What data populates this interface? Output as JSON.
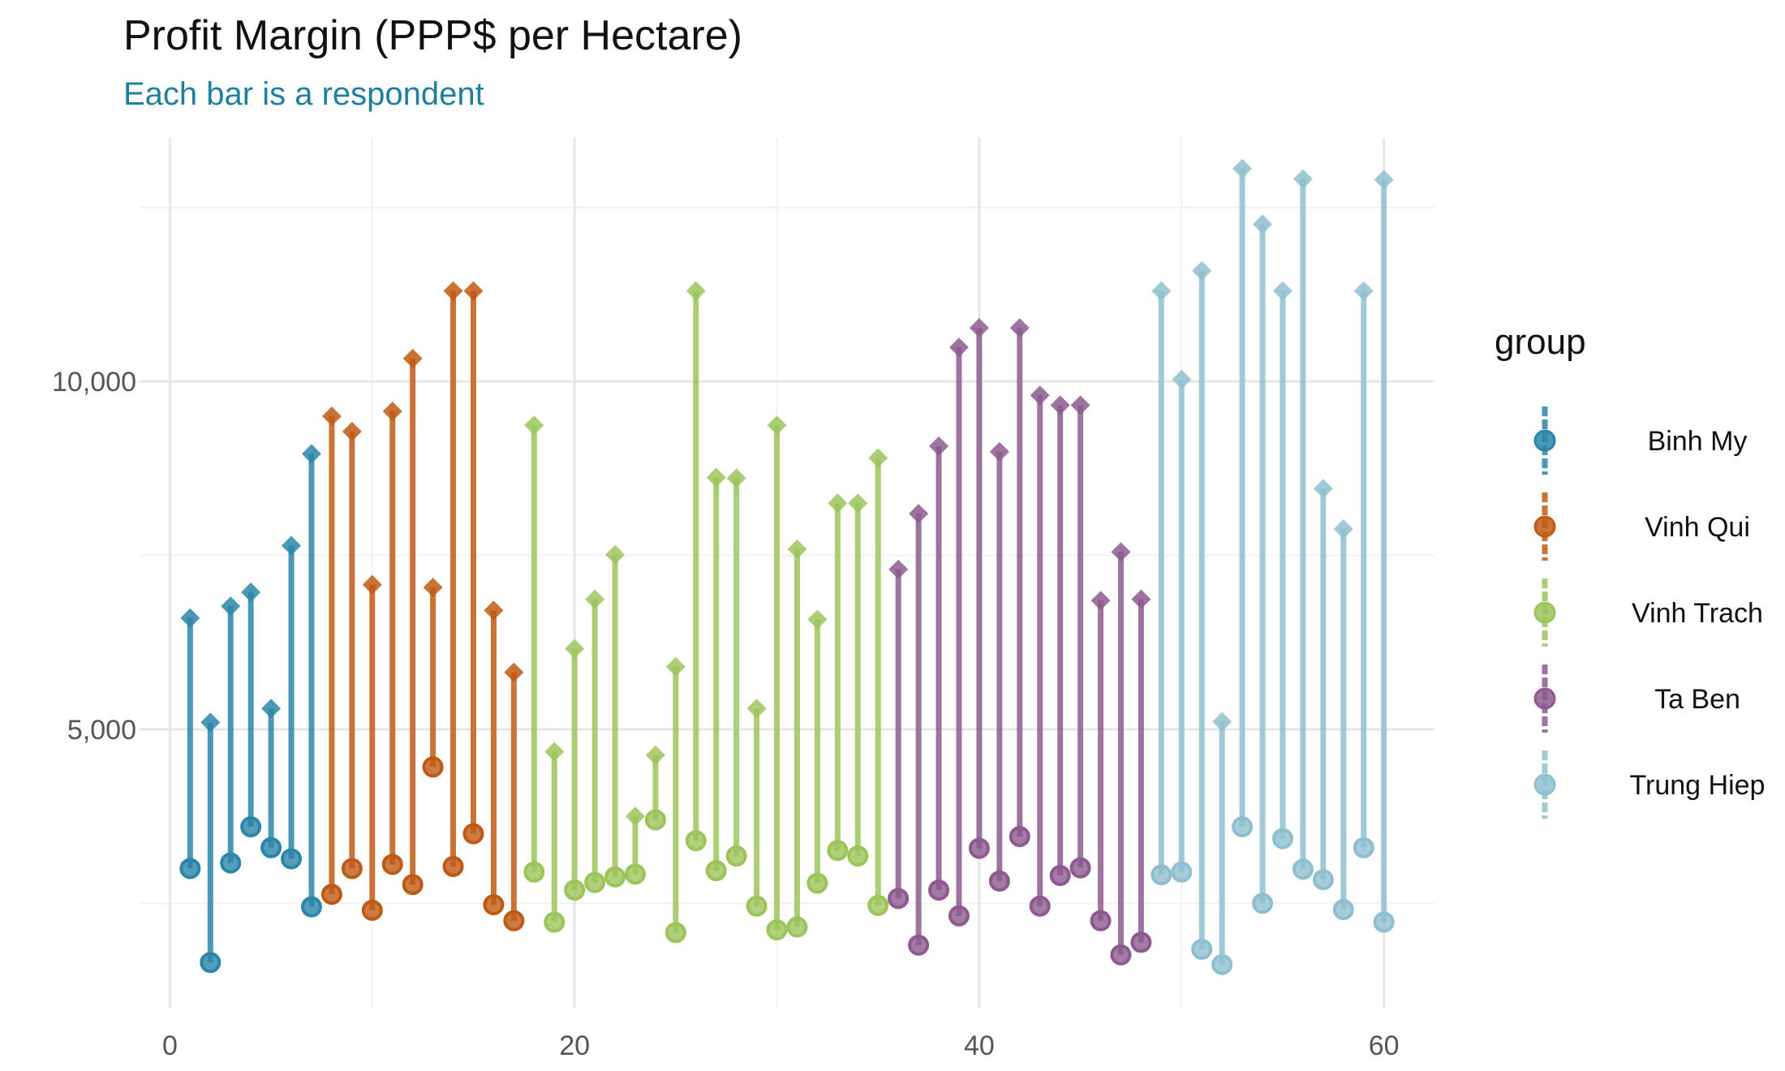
{
  "chart_data": {
    "type": "dumbbell",
    "title": "Profit Margin (PPP$ per Hectare)",
    "subtitle": "Each bar is a respondent",
    "xlabel": "",
    "ylabel": "",
    "xlim": [
      -1.5,
      62.5
    ],
    "ylim": [
      1000,
      13500
    ],
    "x_ticks": [
      0,
      20,
      40,
      60
    ],
    "y_ticks": [
      5000,
      10000
    ],
    "grid": true,
    "legend_title": "group",
    "legend_position": "right",
    "series": [
      {
        "name": "Binh My",
        "color": "#2a86a8",
        "x": [
          1,
          2,
          3,
          4,
          5,
          6,
          7
        ],
        "start": [
          3000,
          1650,
          3080,
          3600,
          3300,
          3140,
          2450
        ],
        "end": [
          6600,
          5100,
          6770,
          6970,
          5300,
          7640,
          8960
        ]
      },
      {
        "name": "Vinh Qui",
        "color": "#bf5a14",
        "x": [
          8,
          9,
          10,
          11,
          12,
          13,
          14,
          15,
          16,
          17
        ],
        "start": [
          2630,
          3000,
          2400,
          3060,
          2770,
          4460,
          3030,
          3500,
          2480,
          2250
        ],
        "end": [
          9500,
          9280,
          7080,
          9570,
          10330,
          7040,
          11300,
          11300,
          6710,
          5820
        ]
      },
      {
        "name": "Vinh Trach",
        "color": "#9cc45a",
        "x": [
          18,
          19,
          20,
          21,
          22,
          23,
          24,
          25,
          26,
          27,
          28,
          29,
          30,
          31,
          32,
          33,
          34,
          35
        ],
        "start": [
          2950,
          2230,
          2690,
          2800,
          2880,
          2920,
          3700,
          2080,
          3400,
          2970,
          3180,
          2460,
          2120,
          2160,
          2790,
          3260,
          3180,
          2470
        ],
        "end": [
          9370,
          4680,
          6160,
          6870,
          7510,
          3750,
          4630,
          5900,
          11300,
          8620,
          8610,
          5300,
          9370,
          7590,
          6580,
          8250,
          8250,
          8900
        ]
      },
      {
        "name": "Ta Ben",
        "color": "#8c5a8e",
        "x": [
          36,
          37,
          38,
          39,
          40,
          41,
          42,
          43,
          44,
          45,
          46,
          47,
          48
        ],
        "start": [
          2570,
          1900,
          2690,
          2320,
          3290,
          2820,
          3460,
          2460,
          2900,
          3010,
          2250,
          1760,
          1940
        ],
        "end": [
          7300,
          8100,
          9070,
          10490,
          10770,
          8990,
          10770,
          9800,
          9660,
          9660,
          6850,
          7550,
          6870
        ]
      },
      {
        "name": "Trung Hiep",
        "color": "#8fbfcf",
        "x": [
          49,
          50,
          51,
          52,
          53,
          54,
          55,
          56,
          57,
          58,
          59,
          60
        ],
        "start": [
          2910,
          2950,
          1840,
          1620,
          3600,
          2500,
          3430,
          2990,
          2840,
          2410,
          3300,
          2230
        ],
        "end": [
          11300,
          10030,
          11590,
          5110,
          13060,
          12260,
          11300,
          12910,
          8460,
          7880,
          11300,
          12900
        ]
      }
    ]
  }
}
